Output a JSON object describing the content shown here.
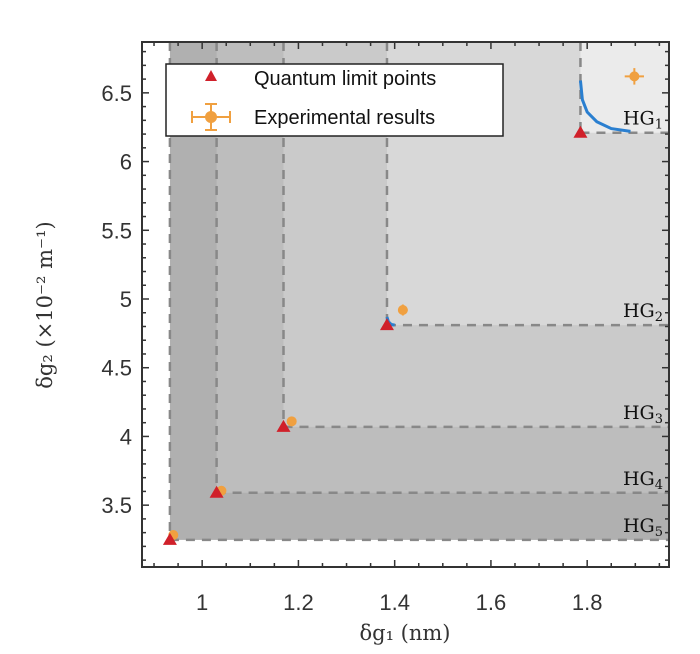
{
  "chart_data": {
    "type": "scatter",
    "xlabel": "δg₁ (nm)",
    "ylabel": "δg₂ (×10⁻² m⁻¹)",
    "xlim": [
      0.875,
      1.97
    ],
    "ylim": [
      3.05,
      6.87
    ],
    "xticks": [
      1,
      1.2,
      1.4,
      1.6,
      1.8
    ],
    "xtick_labels": [
      "1",
      "1.2",
      "1.4",
      "1.6",
      "1.8"
    ],
    "yticks": [
      3.5,
      4,
      4.5,
      5,
      5.5,
      6,
      6.5
    ],
    "ytick_labels": [
      "3.5",
      "4",
      "4.5",
      "5",
      "5.5",
      "6",
      "6.5"
    ],
    "grid": false,
    "legend_position": "top-left",
    "regions": [
      {
        "label": "HG",
        "sub": "1",
        "x": 1.786,
        "y": 6.21,
        "fill": "#ebebeb"
      },
      {
        "label": "HG",
        "sub": "2",
        "x": 1.384,
        "y": 4.81,
        "fill": "#d8d8d8"
      },
      {
        "label": "HG",
        "sub": "3",
        "x": 1.169,
        "y": 4.07,
        "fill": "#cacaca"
      },
      {
        "label": "HG",
        "sub": "4",
        "x": 1.03,
        "y": 3.59,
        "fill": "#bdbdbd"
      },
      {
        "label": "HG",
        "sub": "5",
        "x": 0.933,
        "y": 3.247,
        "fill": "#b0b0b0"
      }
    ],
    "series": [
      {
        "name": "Quantum limit points",
        "marker": "triangle",
        "color": "#d0202a",
        "x": [
          1.786,
          1.384,
          1.169,
          1.03,
          0.933
        ],
        "y": [
          6.21,
          4.81,
          4.07,
          3.59,
          3.247
        ]
      },
      {
        "name": "Experimental results",
        "marker": "circle-errorbar",
        "color": "#f0a040",
        "x": [
          1.898,
          1.417,
          1.186,
          1.04,
          0.94
        ],
        "y": [
          6.62,
          4.92,
          4.11,
          3.605,
          3.283
        ],
        "xerr": [
          0.02,
          0.01,
          0.008,
          0.008,
          0.008
        ],
        "yerr": [
          0.06,
          0.04,
          0.03,
          0.03,
          0.03
        ]
      }
    ],
    "curves": [
      {
        "color": "#2a7fd0",
        "x": [
          1.786,
          1.79,
          1.8,
          1.82,
          1.85,
          1.89
        ],
        "y": [
          6.59,
          6.45,
          6.36,
          6.29,
          6.24,
          6.22
        ]
      },
      {
        "color": "#2a7fd0",
        "x": [
          1.384,
          1.387,
          1.393,
          1.4
        ],
        "y": [
          4.87,
          4.835,
          4.815,
          4.81
        ]
      }
    ]
  }
}
